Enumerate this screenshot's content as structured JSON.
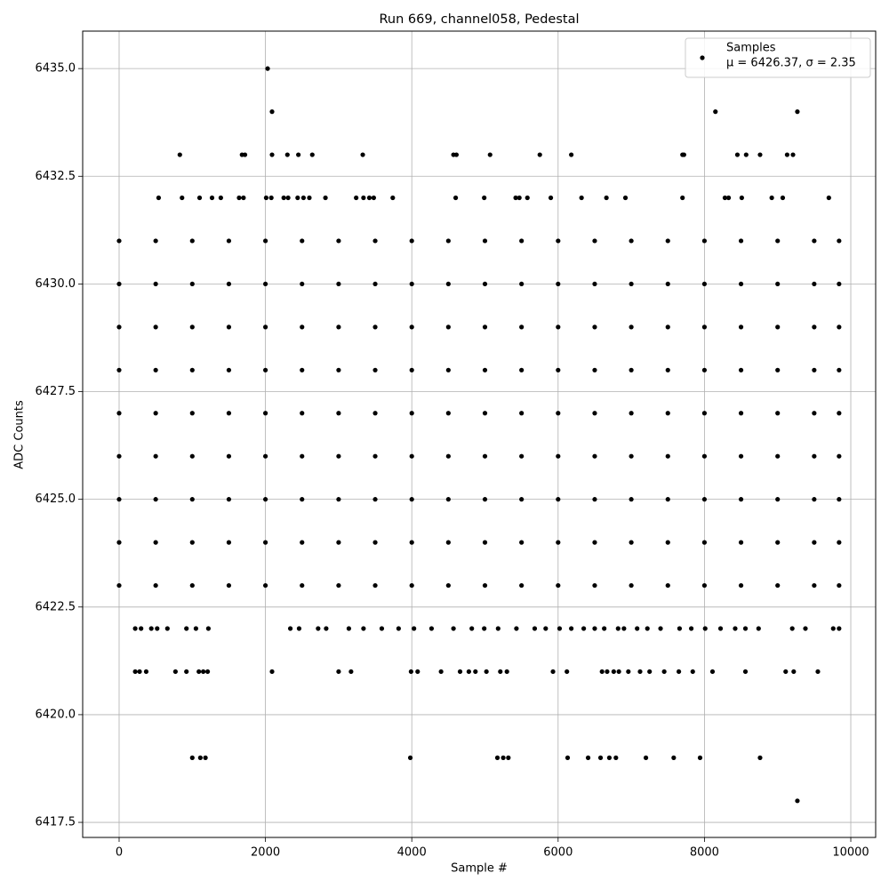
{
  "chart_data": {
    "type": "scatter",
    "title": "Run 669, channel058, Pedestal",
    "x_label": "Sample #",
    "y_label": "ADC Counts",
    "legend": "upper right",
    "annotation": "μ = 6426.37, σ = 2.35",
    "grid": true,
    "xlim": [
      -498,
      10340
    ],
    "ylim": [
      6417.15,
      6435.87
    ],
    "xticks": [
      0,
      2000,
      4000,
      6000,
      8000,
      10000
    ],
    "yticks": [
      6417.5,
      {
        "value": 6420,
        "label": "6420.0"
      },
      6422.5,
      {
        "value": 6425,
        "label": "6425.0"
      },
      6427.5,
      {
        "value": 6430,
        "label": "6430.0"
      },
      6432.5,
      {
        "value": 6435,
        "label": "6435.0"
      }
    ],
    "series": [
      {
        "name": "Samples",
        "color": "#000000",
        "x": [
          2030,
          2090,
          8150,
          9270,
          830,
          1680,
          1720,
          2090,
          2300,
          2450,
          2640,
          3330,
          4570,
          4610,
          5070,
          5750,
          6180,
          7700,
          7720,
          8450,
          8570,
          8760,
          9130,
          9210,
          540,
          860,
          1100,
          1270,
          1390,
          1640,
          1700,
          2010,
          2080,
          2250,
          2310,
          2440,
          2520,
          2600,
          2820,
          3240,
          3340,
          3420,
          3480,
          3740,
          4600,
          4990,
          5420,
          5470,
          5580,
          5900,
          6320,
          6660,
          6920,
          7700,
          8280,
          8330,
          8510,
          8920,
          9070,
          9700,
          0,
          500,
          1000,
          1500,
          2000,
          2500,
          3000,
          3500,
          4000,
          4500,
          5000,
          5500,
          6000,
          6500,
          7000,
          7500,
          8000,
          8500,
          9000,
          9500,
          9840,
          0,
          500,
          1000,
          1500,
          2000,
          2500,
          3000,
          3500,
          4000,
          4500,
          5000,
          5500,
          6000,
          6500,
          7000,
          7500,
          8000,
          8500,
          9000,
          9500,
          9840,
          0,
          500,
          1000,
          1500,
          2000,
          2500,
          3000,
          3500,
          4000,
          4500,
          5000,
          5500,
          6000,
          6500,
          7000,
          7500,
          8000,
          8500,
          9000,
          9500,
          9840,
          0,
          500,
          1000,
          1500,
          2000,
          2500,
          3000,
          3500,
          4000,
          4500,
          5000,
          5500,
          6000,
          6500,
          7000,
          7500,
          8000,
          8500,
          9000,
          9500,
          9840,
          0,
          500,
          1000,
          1500,
          2000,
          2500,
          3000,
          3500,
          4000,
          4500,
          5000,
          5500,
          6000,
          6500,
          7000,
          7500,
          8000,
          8500,
          9000,
          9500,
          9840,
          0,
          500,
          1000,
          1500,
          2000,
          2500,
          3000,
          3500,
          4000,
          4500,
          5000,
          5500,
          6000,
          6500,
          7000,
          7500,
          8000,
          8500,
          9000,
          9500,
          9840,
          0,
          500,
          1000,
          1500,
          2000,
          2500,
          3000,
          3500,
          4000,
          4500,
          5000,
          5500,
          6000,
          6500,
          7000,
          7500,
          8000,
          8500,
          9000,
          9500,
          9840,
          0,
          500,
          1000,
          1500,
          2000,
          2500,
          3000,
          3500,
          4000,
          4500,
          5000,
          5500,
          6000,
          6500,
          7000,
          7500,
          8000,
          8500,
          9000,
          9500,
          9840,
          0,
          500,
          1000,
          1500,
          2000,
          2500,
          3000,
          3500,
          4000,
          4500,
          5000,
          5500,
          6000,
          6500,
          7000,
          7500,
          8000,
          8500,
          9000,
          9500,
          9840,
          220,
          300,
          440,
          520,
          660,
          920,
          1050,
          1220,
          2340,
          2460,
          2720,
          2830,
          3140,
          3340,
          3590,
          3820,
          4030,
          4270,
          4570,
          4820,
          4990,
          5180,
          5430,
          5680,
          5830,
          6020,
          6180,
          6350,
          6500,
          6630,
          6820,
          6900,
          7080,
          7220,
          7400,
          7660,
          7820,
          8010,
          8220,
          8420,
          8560,
          8740,
          9200,
          9380,
          9760,
          9840,
          220,
          280,
          370,
          770,
          920,
          1090,
          1150,
          1210,
          2090,
          3000,
          3170,
          3990,
          4080,
          4400,
          4660,
          4780,
          4870,
          5020,
          5210,
          5300,
          5930,
          6120,
          6600,
          6670,
          6760,
          6830,
          6960,
          7120,
          7250,
          7450,
          7650,
          7840,
          8110,
          8560,
          9110,
          9220,
          9550,
          1000,
          1110,
          1180,
          3980,
          5170,
          5250,
          5320,
          6130,
          6410,
          6580,
          6700,
          6790,
          7200,
          7580,
          7940,
          8760,
          9270
        ],
        "values": [
          6435,
          6434,
          6434,
          6434,
          6433,
          6433,
          6433,
          6433,
          6433,
          6433,
          6433,
          6433,
          6433,
          6433,
          6433,
          6433,
          6433,
          6433,
          6433,
          6433,
          6433,
          6433,
          6433,
          6433,
          6432,
          6432,
          6432,
          6432,
          6432,
          6432,
          6432,
          6432,
          6432,
          6432,
          6432,
          6432,
          6432,
          6432,
          6432,
          6432,
          6432,
          6432,
          6432,
          6432,
          6432,
          6432,
          6432,
          6432,
          6432,
          6432,
          6432,
          6432,
          6432,
          6432,
          6432,
          6432,
          6432,
          6432,
          6432,
          6432,
          6431,
          6431,
          6431,
          6431,
          6431,
          6431,
          6431,
          6431,
          6431,
          6431,
          6431,
          6431,
          6431,
          6431,
          6431,
          6431,
          6431,
          6431,
          6431,
          6431,
          6431,
          6430,
          6430,
          6430,
          6430,
          6430,
          6430,
          6430,
          6430,
          6430,
          6430,
          6430,
          6430,
          6430,
          6430,
          6430,
          6430,
          6430,
          6430,
          6430,
          6430,
          6430,
          6429,
          6429,
          6429,
          6429,
          6429,
          6429,
          6429,
          6429,
          6429,
          6429,
          6429,
          6429,
          6429,
          6429,
          6429,
          6429,
          6429,
          6429,
          6429,
          6429,
          6429,
          6428,
          6428,
          6428,
          6428,
          6428,
          6428,
          6428,
          6428,
          6428,
          6428,
          6428,
          6428,
          6428,
          6428,
          6428,
          6428,
          6428,
          6428,
          6428,
          6428,
          6428,
          6427,
          6427,
          6427,
          6427,
          6427,
          6427,
          6427,
          6427,
          6427,
          6427,
          6427,
          6427,
          6427,
          6427,
          6427,
          6427,
          6427,
          6427,
          6427,
          6427,
          6427,
          6426,
          6426,
          6426,
          6426,
          6426,
          6426,
          6426,
          6426,
          6426,
          6426,
          6426,
          6426,
          6426,
          6426,
          6426,
          6426,
          6426,
          6426,
          6426,
          6426,
          6426,
          6425,
          6425,
          6425,
          6425,
          6425,
          6425,
          6425,
          6425,
          6425,
          6425,
          6425,
          6425,
          6425,
          6425,
          6425,
          6425,
          6425,
          6425,
          6425,
          6425,
          6425,
          6424,
          6424,
          6424,
          6424,
          6424,
          6424,
          6424,
          6424,
          6424,
          6424,
          6424,
          6424,
          6424,
          6424,
          6424,
          6424,
          6424,
          6424,
          6424,
          6424,
          6424,
          6423,
          6423,
          6423,
          6423,
          6423,
          6423,
          6423,
          6423,
          6423,
          6423,
          6423,
          6423,
          6423,
          6423,
          6423,
          6423,
          6423,
          6423,
          6423,
          6423,
          6423,
          6422,
          6422,
          6422,
          6422,
          6422,
          6422,
          6422,
          6422,
          6422,
          6422,
          6422,
          6422,
          6422,
          6422,
          6422,
          6422,
          6422,
          6422,
          6422,
          6422,
          6422,
          6422,
          6422,
          6422,
          6422,
          6422,
          6422,
          6422,
          6422,
          6422,
          6422,
          6422,
          6422,
          6422,
          6422,
          6422,
          6422,
          6422,
          6422,
          6422,
          6422,
          6422,
          6422,
          6422,
          6422,
          6422,
          6421,
          6421,
          6421,
          6421,
          6421,
          6421,
          6421,
          6421,
          6421,
          6421,
          6421,
          6421,
          6421,
          6421,
          6421,
          6421,
          6421,
          6421,
          6421,
          6421,
          6421,
          6421,
          6421,
          6421,
          6421,
          6421,
          6421,
          6421,
          6421,
          6421,
          6421,
          6421,
          6421,
          6421,
          6421,
          6421,
          6421,
          6419,
          6419,
          6419,
          6419,
          6419,
          6419,
          6419,
          6419,
          6419,
          6419,
          6419,
          6419,
          6419,
          6419,
          6419,
          6419,
          6418
        ]
      }
    ]
  }
}
